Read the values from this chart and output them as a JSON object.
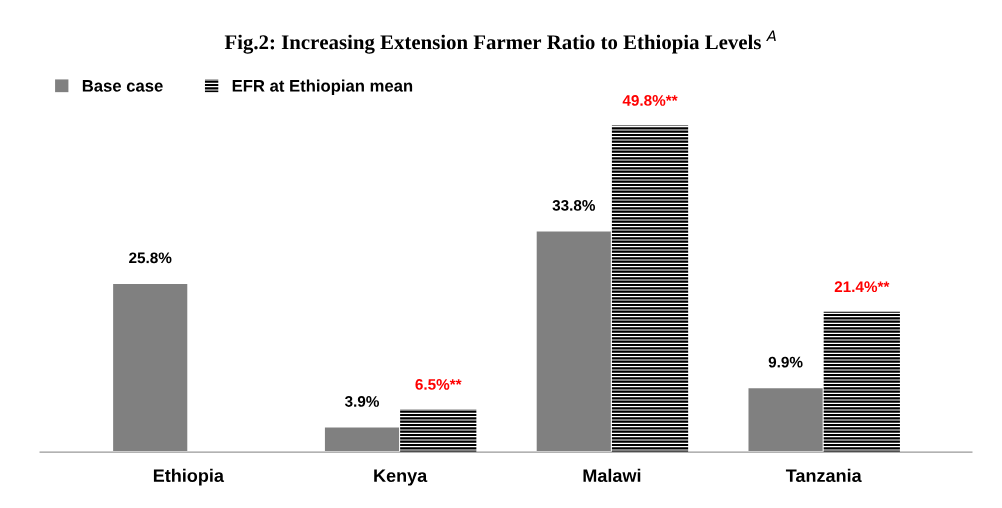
{
  "chart_data": {
    "type": "bar",
    "title": "Fig.2: Increasing Extension Farmer Ratio to Ethiopia Levels $^{A}$",
    "categories": [
      "Ethiopia",
      "Kenya",
      "Malawi",
      "Tanzania"
    ],
    "series": [
      {
        "name": "Base case",
        "color": "#808080",
        "values": [
          25.8,
          3.9,
          33.8,
          9.9
        ],
        "value_labels": [
          "25.8%",
          "3.9%",
          "33.8%",
          "9.9%"
        ]
      },
      {
        "name": "EFR at Ethiopian mean",
        "color": "#000000",
        "values": [
          null,
          6.5,
          49.8,
          21.4
        ],
        "value_labels": [
          null,
          "6.5%**",
          "49.8%**",
          "21.4%**"
        ]
      }
    ],
    "legend": "top left",
    "grid": false
  }
}
